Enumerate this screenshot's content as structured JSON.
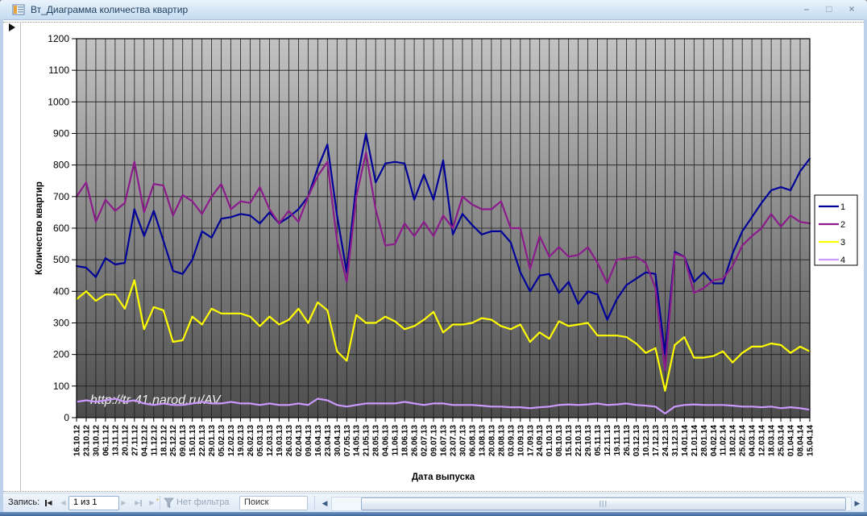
{
  "window": {
    "title": "Вт_Диаграмма количества квартир",
    "controls": {
      "minimize": "–",
      "maximize": "□",
      "close": "×"
    }
  },
  "nav": {
    "record_label": "Запись:",
    "record_value": "1 из 1",
    "first_glyph": "◀",
    "prev_glyph": "◀",
    "next_glyph": "▶",
    "last_glyph": "▶",
    "new_glyph": "▶",
    "filter_label": "Нет фильтра",
    "search_value": "Поиск"
  },
  "watermark": "http://tr-41.narod.ru/AV",
  "chart_data": {
    "type": "line",
    "title": "",
    "xlabel": "Дата выпуска",
    "ylabel": "Количество квартир",
    "ylim": [
      0,
      1200
    ],
    "yticks": [
      0,
      100,
      200,
      300,
      400,
      500,
      600,
      700,
      800,
      900,
      1000,
      1100,
      1200
    ],
    "grid": true,
    "legend_position": "right",
    "plot_background": {
      "top": "#c2c2c2",
      "bottom": "#4c4c4c"
    },
    "categories": [
      "16.10.12",
      "23.10.12",
      "30.10.12",
      "06.11.12",
      "13.11.12",
      "20.11.12",
      "27.11.12",
      "04.12.12",
      "11.12.12",
      "18.12.12",
      "25.12.12",
      "09.01.13",
      "15.01.13",
      "22.01.13",
      "29.01.13",
      "05.02.13",
      "12.02.13",
      "19.02.13",
      "26.02.13",
      "05.03.13",
      "12.03.13",
      "19.03.13",
      "26.03.13",
      "02.04.13",
      "09.04.13",
      "16.04.13",
      "23.04.13",
      "30.04.13",
      "07.05.13",
      "14.05.13",
      "21.05.13",
      "28.05.13",
      "04.06.13",
      "11.06.13",
      "18.06.13",
      "26.06.13",
      "02.07.13",
      "09.07.13",
      "16.07.13",
      "23.07.13",
      "30.07.13",
      "06.08.13",
      "13.08.13",
      "20.08.13",
      "28.08.13",
      "03.09.13",
      "10.09.13",
      "17.09.13",
      "24.09.13",
      "01.10.13",
      "08.10.13",
      "15.10.13",
      "22.10.13",
      "29.10.13",
      "05.11.13",
      "12.11.13",
      "19.11.13",
      "26.11.13",
      "03.12.13",
      "10.12.13",
      "17.12.13",
      "24.12.13",
      "31.12.13",
      "14.01.14",
      "21.01.14",
      "28.01.14",
      "04.02.14",
      "11.02.14",
      "18.02.14",
      "25.02.14",
      "04.03.14",
      "12.03.14",
      "18.03.14",
      "25.03.14",
      "01.04.14",
      "08.04.14",
      "15.04.14"
    ],
    "series": [
      {
        "name": "1",
        "color": "#000099",
        "values": [
          480,
          475,
          445,
          505,
          485,
          490,
          660,
          575,
          655,
          560,
          465,
          455,
          500,
          590,
          570,
          630,
          635,
          645,
          640,
          615,
          650,
          615,
          635,
          660,
          700,
          790,
          865,
          640,
          460,
          740,
          900,
          745,
          805,
          810,
          805,
          690,
          770,
          690,
          815,
          580,
          645,
          610,
          580,
          590,
          590,
          555,
          460,
          400,
          450,
          455,
          395,
          430,
          360,
          400,
          390,
          310,
          375,
          420,
          440,
          460,
          455,
          200,
          525,
          510,
          430,
          460,
          425,
          425,
          520,
          590,
          635,
          680,
          720,
          730,
          720,
          780,
          820
        ]
      },
      {
        "name": "2",
        "color": "#8B1B8B",
        "values": [
          700,
          745,
          620,
          690,
          655,
          680,
          810,
          650,
          740,
          735,
          640,
          705,
          685,
          645,
          700,
          740,
          660,
          685,
          680,
          730,
          660,
          615,
          655,
          620,
          700,
          765,
          810,
          560,
          430,
          700,
          840,
          660,
          545,
          550,
          615,
          575,
          620,
          575,
          640,
          600,
          700,
          675,
          660,
          660,
          685,
          600,
          600,
          470,
          575,
          510,
          540,
          510,
          515,
          540,
          490,
          425,
          500,
          505,
          510,
          490,
          410,
          150,
          520,
          510,
          395,
          410,
          435,
          440,
          480,
          545,
          575,
          600,
          645,
          605,
          640,
          620,
          615
        ]
      },
      {
        "name": "3",
        "color": "#FFFF00",
        "values": [
          375,
          400,
          370,
          390,
          390,
          345,
          435,
          280,
          350,
          340,
          240,
          245,
          320,
          295,
          345,
          330,
          330,
          330,
          320,
          290,
          320,
          295,
          310,
          345,
          300,
          365,
          340,
          210,
          180,
          325,
          300,
          300,
          320,
          305,
          280,
          290,
          310,
          335,
          270,
          295,
          295,
          300,
          315,
          310,
          290,
          280,
          295,
          240,
          270,
          250,
          305,
          290,
          295,
          300,
          260,
          260,
          260,
          255,
          235,
          205,
          220,
          85,
          230,
          255,
          190,
          190,
          195,
          210,
          175,
          205,
          225,
          225,
          235,
          230,
          205,
          225,
          210
        ]
      },
      {
        "name": "4",
        "color": "#CC99FF",
        "values": [
          50,
          55,
          50,
          55,
          60,
          50,
          55,
          45,
          40,
          45,
          40,
          40,
          45,
          50,
          45,
          45,
          50,
          45,
          45,
          40,
          45,
          40,
          40,
          45,
          40,
          60,
          55,
          40,
          35,
          40,
          45,
          45,
          45,
          45,
          50,
          45,
          40,
          45,
          45,
          40,
          40,
          40,
          38,
          35,
          35,
          33,
          33,
          30,
          33,
          35,
          40,
          42,
          40,
          42,
          45,
          40,
          42,
          45,
          40,
          38,
          35,
          13,
          35,
          40,
          42,
          40,
          40,
          40,
          38,
          35,
          35,
          33,
          35,
          30,
          33,
          30,
          25
        ]
      }
    ]
  }
}
